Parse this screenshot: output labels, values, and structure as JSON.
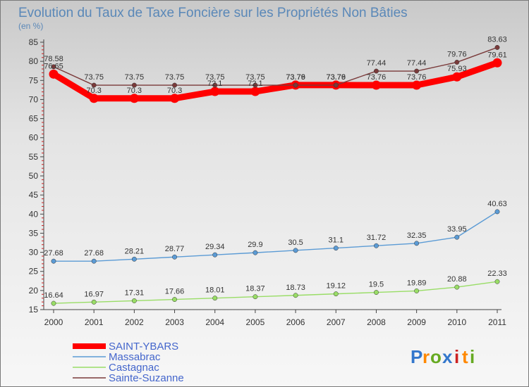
{
  "chart_data": {
    "type": "line",
    "title": "Evolution du Taux de Taxe Foncière sur les Propriétés Non Bâties",
    "unit_label": "(en %)",
    "x": [
      "2000",
      "2001",
      "2002",
      "2003",
      "2004",
      "2005",
      "2006",
      "2007",
      "2008",
      "2009",
      "2010",
      "2011"
    ],
    "ylim": [
      15,
      85
    ],
    "yticks": [
      15,
      20,
      25,
      30,
      35,
      40,
      45,
      50,
      55,
      60,
      65,
      70,
      75,
      80,
      85
    ],
    "grid": false,
    "legend_position": "bottom-left",
    "series": [
      {
        "name": "SAINT-YBARS",
        "color": "#ff0000",
        "values": [
          76.65,
          70.3,
          70.3,
          70.3,
          72.1,
          72.1,
          73.79,
          73.79,
          73.76,
          73.76,
          75.93,
          79.61
        ],
        "labels": [
          "76.65",
          "70.3",
          "70.3",
          "70.3",
          "72.1",
          "72.1",
          "73.79",
          "73.79",
          "73.76",
          "73.76",
          "75.93",
          "79.61"
        ],
        "emphasis": true
      },
      {
        "name": "Massabrac",
        "color": "#5b9bd5",
        "values": [
          27.68,
          27.68,
          28.21,
          28.77,
          29.34,
          29.9,
          30.5,
          31.1,
          31.72,
          32.35,
          33.95,
          40.63
        ],
        "labels": [
          "27.68",
          "27.68",
          "28.21",
          "28.77",
          "29.34",
          "29.9",
          "30.5",
          "31.1",
          "31.72",
          "32.35",
          "33.95",
          "40.63"
        ]
      },
      {
        "name": "Castagnac",
        "color": "#99dd66",
        "values": [
          16.64,
          16.97,
          17.31,
          17.66,
          18.01,
          18.37,
          18.73,
          19.12,
          19.5,
          19.89,
          20.88,
          22.33
        ],
        "labels": [
          "16.64",
          "16.97",
          "17.31",
          "17.66",
          "18.01",
          "18.37",
          "18.73",
          "19.12",
          "19.5",
          "19.89",
          "20.88",
          "22.33"
        ]
      },
      {
        "name": "Sainte-Suzanne",
        "color": "#7a3a3a",
        "values": [
          78.58,
          73.75,
          73.75,
          73.75,
          73.75,
          73.75,
          73.76,
          73.76,
          77.44,
          77.44,
          79.76,
          83.63
        ],
        "labels": [
          "78.58",
          "73.75",
          "73.75",
          "73.75",
          "73.75",
          "73.75",
          "73.76",
          "73.76",
          "77.44",
          "77.44",
          "79.76",
          "83.63"
        ]
      }
    ]
  },
  "logo": {
    "letters": [
      "P",
      "r",
      "o",
      "x",
      "i",
      "t",
      "i"
    ],
    "colors": [
      "#3377cc",
      "#ff8800",
      "#66aa22",
      "#3377cc",
      "#cc2222",
      "#ff8800",
      "#66aa22"
    ]
  }
}
